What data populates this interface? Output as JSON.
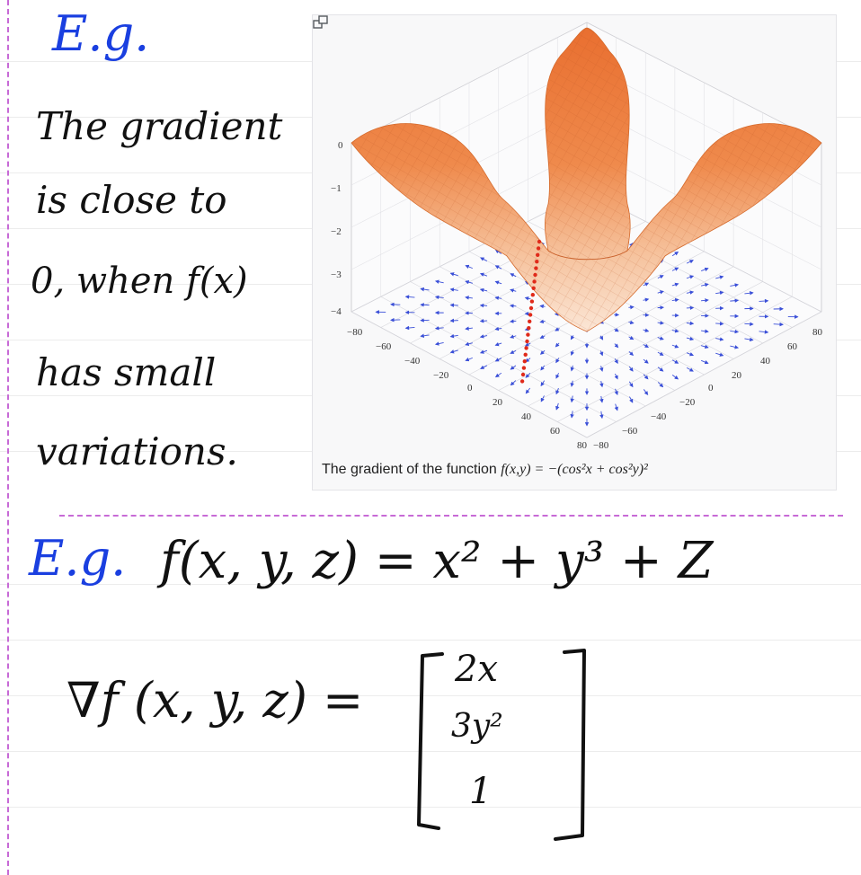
{
  "notes": {
    "eg_label_1": "E.g.",
    "lines": [
      "The gradient",
      "is close to",
      "0, when f(x)",
      "has small",
      "variations."
    ],
    "eg_label_2": "E.g.",
    "function_def": "f(x, y, z) = x² + y³ + Z",
    "gradient_lhs": "∇f (x, y, z) =",
    "gradient_vector": [
      "2x",
      "3y²",
      "1"
    ]
  },
  "figure": {
    "caption_prefix": "The gradient of the function ",
    "caption_formula": "f(x,y) = −(cos²x + cos²y)²",
    "z_ticks": [
      "0",
      "−1",
      "−2",
      "−3",
      "−4"
    ],
    "left_axis_ticks": [
      "−80",
      "−60",
      "−40",
      "−20",
      "0",
      "20",
      "40",
      "60",
      "80"
    ],
    "right_axis_ticks": [
      "−80",
      "−60",
      "−40",
      "−20",
      "0",
      "20",
      "40",
      "60",
      "80"
    ],
    "surface_color": "#e8793a",
    "arrow_color": "#3a4fd8",
    "marker_color": "#e02a1a"
  }
}
